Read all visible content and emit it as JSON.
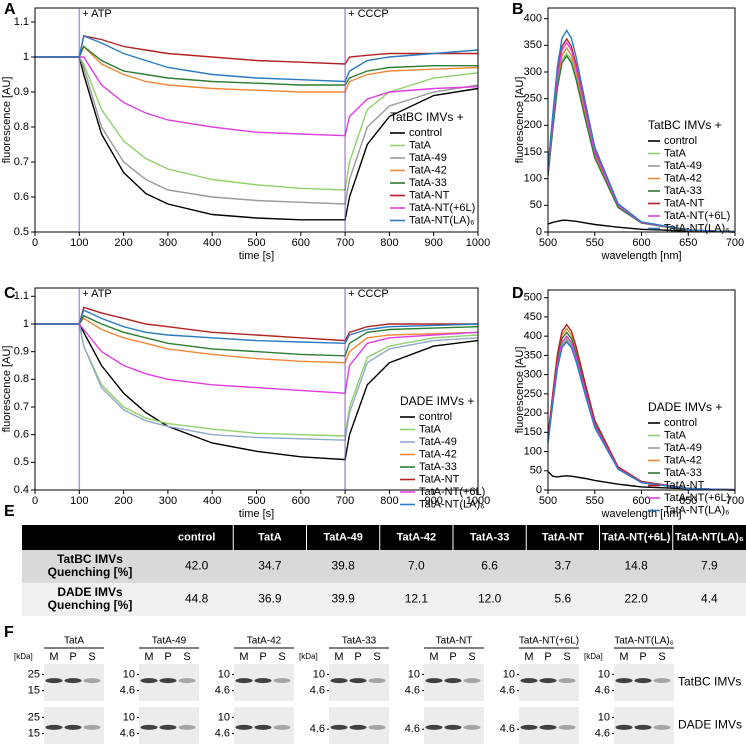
{
  "chart_data": [
    {
      "type": "line",
      "panel": "A",
      "x_label": "time [s]",
      "y_label": "fluorescence [AU]",
      "legend_title": "TatBC IMVs +",
      "annotations": [
        {
          "text": "+ ATP",
          "x": 100
        },
        {
          "text": "+ CCCP",
          "x": 700
        }
      ],
      "x": [
        0,
        100,
        110,
        150,
        200,
        250,
        300,
        400,
        500,
        600,
        700,
        710,
        750,
        800,
        900,
        1000
      ],
      "xlim": [
        0,
        1000
      ],
      "xticks": [
        0,
        100,
        200,
        300,
        400,
        500,
        600,
        700,
        800,
        900,
        1000
      ],
      "ylim": [
        0.5,
        1.14
      ],
      "yticks": [
        0.5,
        0.6,
        0.7,
        0.8,
        0.9,
        1,
        1.1
      ],
      "series": [
        {
          "name": "control",
          "color": "#000000",
          "values": [
            1,
            1,
            0.95,
            0.78,
            0.67,
            0.61,
            0.58,
            0.55,
            0.54,
            0.535,
            0.535,
            0.6,
            0.75,
            0.83,
            0.89,
            0.91
          ]
        },
        {
          "name": "TatA",
          "color": "#8fd16a",
          "values": [
            1,
            1,
            0.98,
            0.85,
            0.76,
            0.71,
            0.68,
            0.65,
            0.635,
            0.625,
            0.62,
            0.7,
            0.85,
            0.9,
            0.94,
            0.955
          ]
        },
        {
          "name": "TatA-49",
          "color": "#999999",
          "values": [
            1,
            1,
            0.97,
            0.8,
            0.7,
            0.65,
            0.62,
            0.6,
            0.59,
            0.585,
            0.58,
            0.65,
            0.8,
            0.86,
            0.9,
            0.92
          ]
        },
        {
          "name": "TatA-42",
          "color": "#f0883a",
          "values": [
            1,
            1,
            1.03,
            0.98,
            0.95,
            0.93,
            0.92,
            0.91,
            0.905,
            0.9,
            0.9,
            0.93,
            0.95,
            0.96,
            0.965,
            0.97
          ]
        },
        {
          "name": "TatA-33",
          "color": "#2e7d32",
          "values": [
            1,
            1,
            1.03,
            0.99,
            0.96,
            0.95,
            0.94,
            0.93,
            0.925,
            0.92,
            0.92,
            0.94,
            0.96,
            0.97,
            0.975,
            0.975
          ]
        },
        {
          "name": "TatA-NT",
          "color": "#b22222",
          "values": [
            1,
            1,
            1.06,
            1.05,
            1.03,
            1.02,
            1.01,
            1.0,
            0.99,
            0.985,
            0.98,
            1.0,
            1.005,
            1.01,
            1.01,
            1.01
          ]
        },
        {
          "name": "TatA-NT(+6L)",
          "color": "#e03ee0",
          "values": [
            1,
            1,
            1.0,
            0.92,
            0.87,
            0.84,
            0.82,
            0.8,
            0.785,
            0.78,
            0.775,
            0.83,
            0.88,
            0.9,
            0.91,
            0.915
          ]
        },
        {
          "name": "TatA-NT(LA)₆",
          "color": "#2a7bbf",
          "values": [
            1,
            1,
            1.06,
            1.04,
            1.01,
            0.99,
            0.97,
            0.95,
            0.94,
            0.935,
            0.93,
            0.96,
            0.99,
            1.0,
            1.01,
            1.02
          ]
        }
      ]
    },
    {
      "type": "line",
      "panel": "B",
      "x_label": "wavelength [nm]",
      "y_label": "fluorescence [AU]",
      "legend_title": "TatBC IMVs +",
      "x": [
        500,
        505,
        510,
        515,
        520,
        525,
        530,
        540,
        550,
        575,
        600,
        650,
        700
      ],
      "xlim": [
        500,
        700
      ],
      "xticks": [
        500,
        550,
        600,
        650,
        700
      ],
      "ylim": [
        0,
        420
      ],
      "yticks": [
        0,
        50,
        100,
        150,
        200,
        250,
        300,
        350,
        400
      ],
      "series": [
        {
          "name": "control",
          "color": "#000000",
          "values": [
            15,
            18,
            20,
            22,
            22,
            21,
            20,
            17,
            14,
            9,
            5,
            2,
            1
          ]
        },
        {
          "name": "TatA",
          "color": "#8fd16a",
          "values": [
            107,
            194,
            275,
            322,
            335,
            322,
            291,
            214,
            141,
            47,
            17,
            3,
            0
          ]
        },
        {
          "name": "TatA-49",
          "color": "#999999",
          "values": [
            106,
            191,
            271,
            317,
            330,
            317,
            287,
            211,
            139,
            46,
            17,
            3,
            0
          ]
        },
        {
          "name": "TatA-42",
          "color": "#f0883a",
          "values": [
            110,
            200,
            283,
            331,
            345,
            331,
            300,
            221,
            145,
            48,
            17,
            3,
            0
          ]
        },
        {
          "name": "TatA-33",
          "color": "#2e7d32",
          "values": [
            106,
            191,
            271,
            317,
            330,
            317,
            287,
            211,
            139,
            46,
            17,
            3,
            0
          ]
        },
        {
          "name": "TatA-NT",
          "color": "#b22222",
          "values": [
            116,
            210,
            297,
            348,
            362,
            348,
            315,
            232,
            152,
            51,
            18,
            4,
            0
          ]
        },
        {
          "name": "TatA-NT(+6L)",
          "color": "#e03ee0",
          "values": [
            114,
            206,
            291,
            341,
            355,
            341,
            309,
            227,
            149,
            50,
            18,
            4,
            0
          ]
        },
        {
          "name": "TatA-NT(LA)₆",
          "color": "#2a7bbf",
          "values": [
            121,
            219,
            310,
            363,
            378,
            363,
            329,
            242,
            159,
            53,
            19,
            4,
            0
          ]
        }
      ]
    },
    {
      "type": "line",
      "panel": "C",
      "x_label": "time [s]",
      "y_label": "fluorescence [AU]",
      "legend_title": "DADE IMVs +",
      "annotations": [
        {
          "text": "+ ATP",
          "x": 100
        },
        {
          "text": "+ CCCP",
          "x": 700
        }
      ],
      "x": [
        0,
        100,
        110,
        150,
        200,
        250,
        300,
        400,
        500,
        600,
        700,
        710,
        750,
        800,
        900,
        1000
      ],
      "xlim": [
        0,
        1000
      ],
      "xticks": [
        0,
        100,
        200,
        300,
        400,
        500,
        600,
        700,
        800,
        900,
        1000
      ],
      "ylim": [
        0.4,
        1.13
      ],
      "yticks": [
        0.4,
        0.5,
        0.6,
        0.7,
        0.8,
        0.9,
        1,
        1.1
      ],
      "series": [
        {
          "name": "control",
          "color": "#000000",
          "values": [
            1,
            1,
            0.97,
            0.85,
            0.75,
            0.68,
            0.63,
            0.57,
            0.54,
            0.52,
            0.51,
            0.6,
            0.78,
            0.86,
            0.92,
            0.94
          ]
        },
        {
          "name": "TatA",
          "color": "#8fd16a",
          "values": [
            1,
            1,
            0.92,
            0.78,
            0.7,
            0.66,
            0.64,
            0.62,
            0.605,
            0.6,
            0.595,
            0.7,
            0.88,
            0.92,
            0.95,
            0.96
          ]
        },
        {
          "name": "TatA-49",
          "color": "#8fa9c9",
          "values": [
            1,
            1,
            0.92,
            0.77,
            0.69,
            0.65,
            0.63,
            0.6,
            0.59,
            0.585,
            0.58,
            0.68,
            0.86,
            0.91,
            0.94,
            0.95
          ]
        },
        {
          "name": "TatA-42",
          "color": "#f0883a",
          "values": [
            1,
            1,
            1.02,
            0.98,
            0.95,
            0.93,
            0.91,
            0.89,
            0.875,
            0.865,
            0.86,
            0.9,
            0.95,
            0.96,
            0.965,
            0.97
          ]
        },
        {
          "name": "TatA-33",
          "color": "#2e7d32",
          "values": [
            1,
            1,
            1.03,
            1.0,
            0.97,
            0.95,
            0.93,
            0.91,
            0.9,
            0.89,
            0.885,
            0.93,
            0.97,
            0.98,
            0.985,
            0.99
          ]
        },
        {
          "name": "TatA-NT",
          "color": "#b22222",
          "values": [
            1,
            1,
            1.06,
            1.04,
            1.02,
            1.0,
            0.99,
            0.97,
            0.96,
            0.95,
            0.94,
            0.97,
            0.99,
            1.0,
            1.0,
            1.0
          ]
        },
        {
          "name": "TatA-NT(+6L)",
          "color": "#e03ee0",
          "values": [
            1,
            1,
            0.98,
            0.9,
            0.85,
            0.82,
            0.8,
            0.78,
            0.77,
            0.76,
            0.75,
            0.85,
            0.93,
            0.95,
            0.96,
            0.97
          ]
        },
        {
          "name": "TatA-NT(LA)₆",
          "color": "#2a7bbf",
          "values": [
            1,
            1,
            1.05,
            1.02,
            0.99,
            0.97,
            0.96,
            0.95,
            0.94,
            0.935,
            0.93,
            0.96,
            0.98,
            0.99,
            0.995,
            1.0
          ]
        }
      ]
    },
    {
      "type": "line",
      "panel": "D",
      "x_label": "wavelength [nm]",
      "y_label": "fluorescence [AU]",
      "legend_title": "DADE IMVs +",
      "x": [
        500,
        505,
        510,
        515,
        520,
        525,
        530,
        540,
        550,
        575,
        600,
        650,
        700
      ],
      "xlim": [
        500,
        700
      ],
      "xticks": [
        500,
        550,
        600,
        650,
        700
      ],
      "ylim": [
        0,
        520
      ],
      "yticks": [
        0,
        50,
        100,
        150,
        200,
        250,
        300,
        350,
        400,
        450,
        500
      ],
      "series": [
        {
          "name": "control",
          "color": "#000000",
          "values": [
            48,
            36,
            34,
            36,
            37,
            36,
            34,
            30,
            25,
            15,
            8,
            3,
            1
          ]
        },
        {
          "name": "TatA",
          "color": "#8fd16a",
          "values": [
            126,
            229,
            324,
            379,
            395,
            379,
            344,
            253,
            166,
            55,
            20,
            4,
            0
          ]
        },
        {
          "name": "TatA-49",
          "color": "#999999",
          "values": [
            125,
            226,
            320,
            374,
            390,
            374,
            339,
            250,
            164,
            55,
            20,
            4,
            0
          ]
        },
        {
          "name": "TatA-42",
          "color": "#f0883a",
          "values": [
            134,
            244,
            344,
            403,
            420,
            403,
            365,
            269,
            176,
            59,
            21,
            4,
            0
          ]
        },
        {
          "name": "TatA-33",
          "color": "#2e7d32",
          "values": [
            131,
            238,
            336,
            394,
            410,
            394,
            357,
            262,
            172,
            57,
            21,
            4,
            0
          ]
        },
        {
          "name": "TatA-NT",
          "color": "#b22222",
          "values": [
            138,
            249,
            353,
            413,
            430,
            413,
            374,
            275,
            181,
            60,
            22,
            4,
            0
          ]
        },
        {
          "name": "TatA-NT(+6L)",
          "color": "#e03ee0",
          "values": [
            128,
            232,
            328,
            384,
            400,
            384,
            348,
            256,
            168,
            56,
            20,
            4,
            0
          ]
        },
        {
          "name": "TatA-NT(LA)₆",
          "color": "#2a7bbf",
          "values": [
            123,
            223,
            316,
            370,
            385,
            370,
            335,
            246,
            162,
            54,
            19,
            4,
            0
          ]
        }
      ]
    }
  ],
  "table": {
    "panel": "E",
    "header": [
      "control",
      "TatA",
      "TatA-49",
      "TatA-42",
      "TatA-33",
      "TatA-NT",
      "TatA-NT(+6L)",
      "TatA-NT(LA)₆"
    ],
    "rows": [
      {
        "label": [
          "TatBC IMVs",
          "Quenching [%]"
        ],
        "values": [
          "42.0",
          "34.7",
          "39.8",
          "7.0",
          "6.6",
          "3.7",
          "14.8",
          "7.9"
        ]
      },
      {
        "label": [
          "DADE IMVs",
          "Quenching [%]"
        ],
        "values": [
          "44.8",
          "36.9",
          "39.9",
          "12.1",
          "12.0",
          "5.6",
          "22.0",
          "4.4"
        ]
      }
    ]
  },
  "blots": {
    "panel": "F",
    "rows": [
      "TatBC IMVs",
      "DADE IMVs"
    ],
    "panels": [
      {
        "title": "TatA",
        "kda": "[kDa]",
        "lanes": [
          "M",
          "P",
          "S"
        ],
        "markers_top": [
          "25",
          "15"
        ],
        "markers_bottom": [
          "25",
          "15"
        ]
      },
      {
        "title": "TatA-49",
        "lanes": [
          "M",
          "P",
          "S"
        ],
        "markers_top": [
          "10",
          "4.6"
        ],
        "markers_bottom": [
          "10",
          "4.6"
        ]
      },
      {
        "title": "TatA-42",
        "lanes": [
          "M",
          "P",
          "S"
        ],
        "markers_top": [
          "10",
          "4.6"
        ],
        "markers_bottom": [
          "10",
          "4.6"
        ]
      },
      {
        "title": "TatA-33",
        "kda": "[kDa]",
        "lanes": [
          "M",
          "P",
          "S"
        ],
        "markers_top": [
          "10",
          "4.6"
        ],
        "markers_bottom": [
          "4.6"
        ]
      },
      {
        "title": "TatA-NT",
        "lanes": [
          "M",
          "P",
          "S"
        ],
        "markers_top": [
          "10",
          "4.6"
        ],
        "markers_bottom": [
          "4.6"
        ]
      },
      {
        "title": "TatA-NT(+6L)",
        "lanes": [
          "M",
          "P",
          "S"
        ],
        "markers_top": [
          "10",
          "4.6"
        ],
        "markers_bottom": [
          "4.6"
        ]
      },
      {
        "title": "TatA-NT(LA)₆",
        "kda": "[kDa]",
        "lanes": [
          "M",
          "P",
          "S"
        ],
        "markers_top": [
          "10",
          "4.6"
        ],
        "markers_bottom": [
          "10",
          "4.6"
        ]
      }
    ]
  }
}
